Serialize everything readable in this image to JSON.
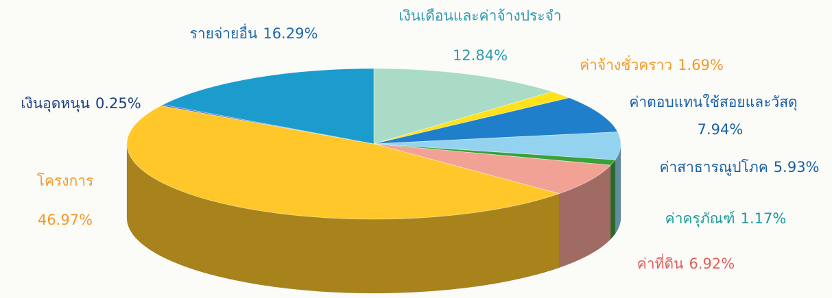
{
  "chart_data": {
    "type": "pie3d",
    "categories": [
      "เงินเดือนและค่าจ้างประจำ",
      "ค่าจ้างชั่วคราว",
      "ค่าตอบแทนใช้สอยและวัสดุ",
      "ค่าสาธารณูปโภค",
      "ค่าครุภัณฑ์",
      "ค่าที่ดิน",
      "โครงการ",
      "เงินอุดหนุน",
      "รายจ่ายอื่น"
    ],
    "values": [
      12.84,
      1.69,
      7.94,
      5.93,
      1.17,
      6.92,
      46.97,
      0.25,
      16.29
    ],
    "value_labels": [
      "12.84%",
      "1.69%",
      "7.94%",
      "5.93%",
      "1.17%",
      "6.92%",
      "46.97%",
      "0.25%",
      "16.29%"
    ],
    "colors": [
      "#a9dbc6",
      "#ffe21a",
      "#1f7fcb",
      "#93d3f0",
      "#3aa03a",
      "#f2a294",
      "#ffc72a",
      "#5a5fb0",
      "#1c9ccc"
    ]
  }
}
